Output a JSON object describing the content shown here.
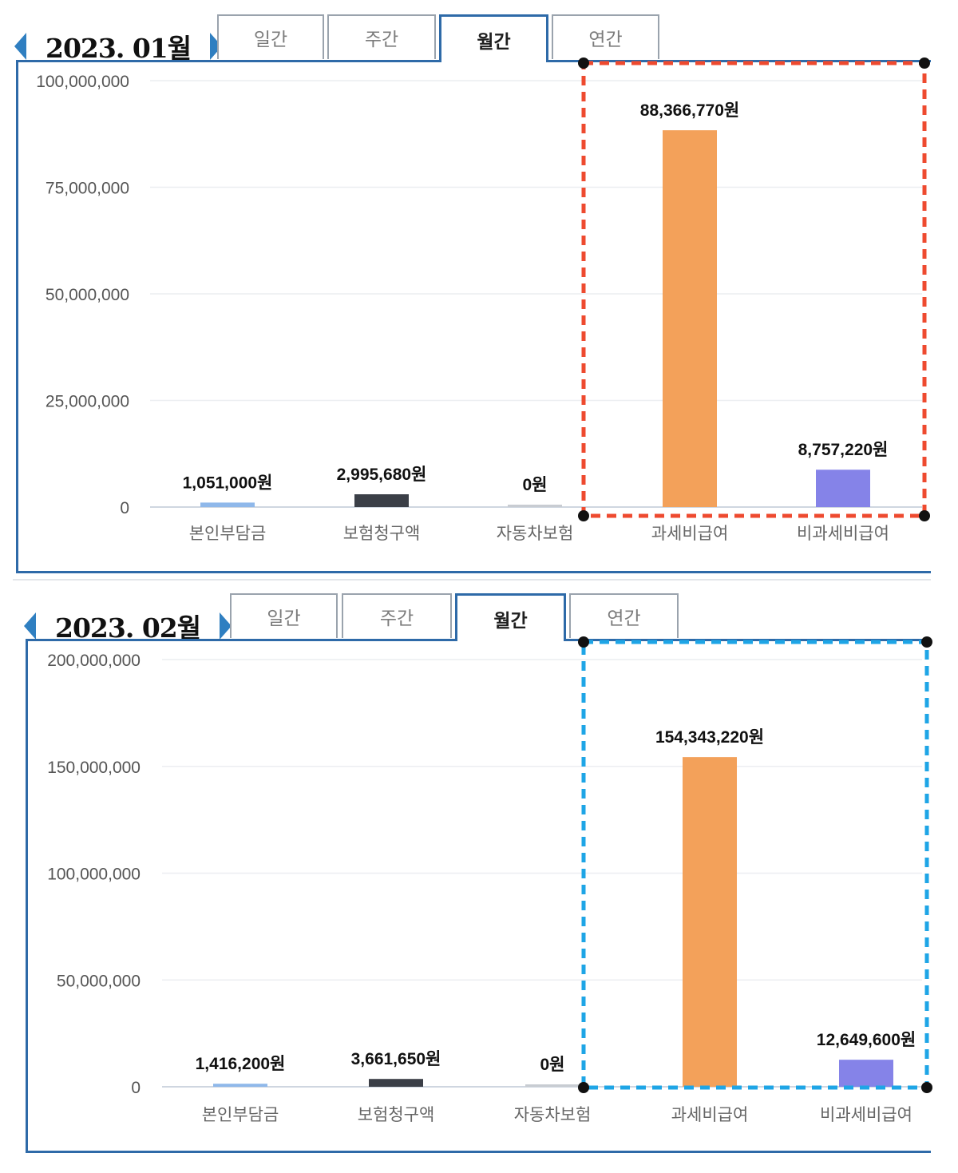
{
  "charts": [
    {
      "period_label": "2023. 01월",
      "tabs": [
        "일간",
        "주간",
        "월간",
        "연간"
      ],
      "active_tab": 2,
      "highlight_color": "#ee4a2f"
    },
    {
      "period_label": "2023. 02월",
      "tabs": [
        "일간",
        "주간",
        "월간",
        "연간"
      ],
      "active_tab": 2,
      "highlight_color": "#1ea5e6"
    }
  ],
  "chart_data": [
    {
      "type": "bar",
      "categories": [
        "본인부담금",
        "보험청구액",
        "자동차보험",
        "과세비급여",
        "비과세비급여"
      ],
      "values": [
        1051000,
        2995680,
        0,
        88366770,
        8757220
      ],
      "value_labels": [
        "1,051,000원",
        "2,995,680원",
        "0원",
        "88,366,770원",
        "8,757,220원"
      ],
      "bar_colors": [
        "#8fb8ea",
        "#3b3f47",
        "#c8ccd2",
        "#f3a15a",
        "#8583e8"
      ],
      "yticks": [
        0,
        25000000,
        50000000,
        75000000,
        100000000
      ],
      "ytick_labels": [
        "0",
        "25,000,000",
        "50,000,000",
        "75,000,000",
        "100,000,000"
      ],
      "ylim": [
        0,
        100000000
      ],
      "grid": true,
      "highlighted_categories": [
        "과세비급여",
        "비과세비급여"
      ]
    },
    {
      "type": "bar",
      "categories": [
        "본인부담금",
        "보험청구액",
        "자동차보험",
        "과세비급여",
        "비과세비급여"
      ],
      "values": [
        1416200,
        3661650,
        0,
        154343220,
        12649600
      ],
      "value_labels": [
        "1,416,200원",
        "3,661,650원",
        "0원",
        "154,343,220원",
        "12,649,600원"
      ],
      "bar_colors": [
        "#8fb8ea",
        "#3b3f47",
        "#c8ccd2",
        "#f3a15a",
        "#8583e8"
      ],
      "yticks": [
        0,
        50000000,
        100000000,
        150000000,
        200000000
      ],
      "ytick_labels": [
        "0",
        "50,000,000",
        "100,000,000",
        "150,000,000",
        "200,000,000"
      ],
      "ylim": [
        0,
        200000000
      ],
      "grid": true,
      "highlighted_categories": [
        "과세비급여",
        "비과세비급여"
      ]
    }
  ]
}
